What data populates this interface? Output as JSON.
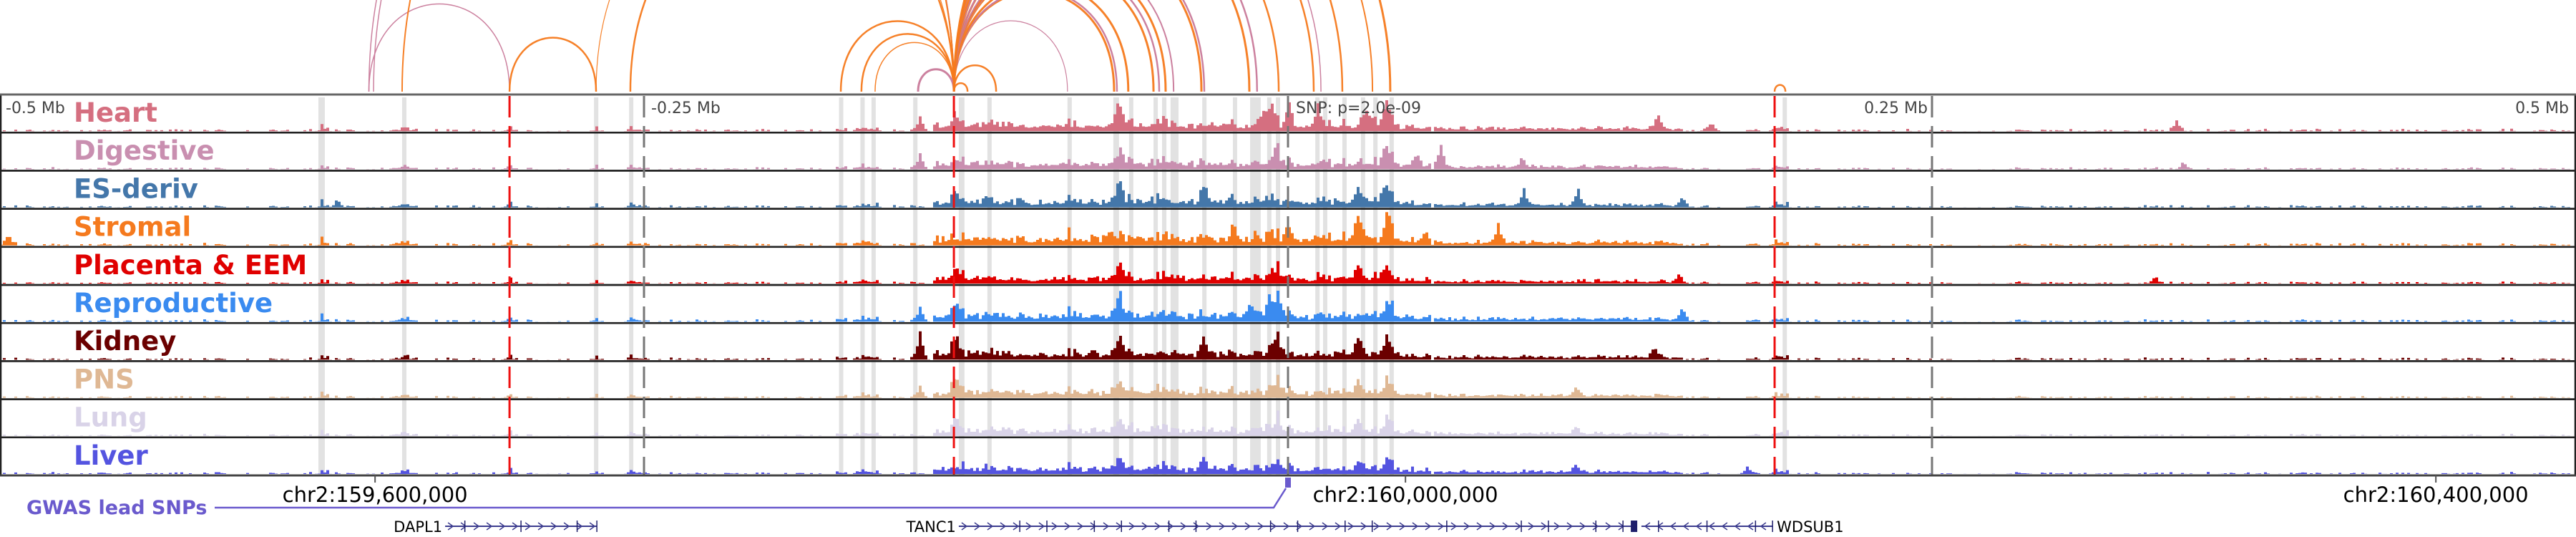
{
  "viewer": {
    "region_span_mb": [
      -0.5,
      0.5
    ],
    "snp_label": "SNP: p=2.0e-09",
    "top_axis": [
      {
        "offset_mb": -0.5,
        "label": "-0.5 Mb"
      },
      {
        "offset_mb": -0.25,
        "label": "-0.25 Mb"
      },
      {
        "offset_mb": 0.25,
        "label": "0.25 Mb"
      },
      {
        "offset_mb": 0.5,
        "label": "0.5 Mb"
      }
    ],
    "bottom_axis": [
      {
        "offset_mb": -0.3544,
        "label": "chr2:159,600,000"
      },
      {
        "offset_mb": 0.0456,
        "label": "chr2:160,000,000"
      },
      {
        "offset_mb": 0.4456,
        "label": "chr2:160,400,000"
      }
    ],
    "red_markers_mb": [
      -0.3022,
      -0.1297,
      0.1889
    ],
    "highlight_bands_mb": [
      {
        "start": -0.3764,
        "end": -0.3739
      },
      {
        "start": -0.3439,
        "end": -0.3433
      },
      {
        "start": -0.2694,
        "end": -0.2686
      },
      {
        "start": -0.2558,
        "end": -0.2553
      },
      {
        "start": -0.1743,
        "end": -0.1737
      },
      {
        "start": -0.166,
        "end": -0.1654
      },
      {
        "start": -0.1617,
        "end": -0.1611
      },
      {
        "start": -0.1455,
        "end": -0.1445
      },
      {
        "start": -0.1278,
        "end": -0.1256
      },
      {
        "start": -0.1167,
        "end": -0.1161
      },
      {
        "start": -0.0856,
        "end": -0.085
      },
      {
        "start": -0.0678,
        "end": -0.0656
      },
      {
        "start": -0.0617,
        "end": -0.0611
      },
      {
        "start": -0.0522,
        "end": -0.0506
      },
      {
        "start": -0.0489,
        "end": -0.0472
      },
      {
        "start": -0.0456,
        "end": -0.0425
      },
      {
        "start": -0.0333,
        "end": -0.0317
      },
      {
        "start": -0.0214,
        "end": -0.0208
      },
      {
        "start": -0.0147,
        "end": -0.0106
      },
      {
        "start": -0.0081,
        "end": -0.0072
      },
      {
        "start": -0.0047,
        "end": -0.0039
      },
      {
        "start": 0.0106,
        "end": 0.0114
      },
      {
        "start": 0.0136,
        "end": 0.0142
      },
      {
        "start": 0.0211,
        "end": 0.0217
      },
      {
        "start": 0.0283,
        "end": 0.0292
      },
      {
        "start": 0.0331,
        "end": 0.0339
      },
      {
        "start": 0.0394,
        "end": 0.0406
      },
      {
        "start": 0.192,
        "end": 0.1928
      }
    ],
    "tracks": [
      {
        "name": "Heart",
        "color": "#d56f80",
        "gain": 1.0
      },
      {
        "name": "Digestive",
        "color": "#c98fb0",
        "gain": 0.9
      },
      {
        "name": "ES-deriv",
        "color": "#4477aa",
        "gain": 0.95
      },
      {
        "name": "Stromal",
        "color": "#f57a1e",
        "gain": 1.1
      },
      {
        "name": "Placenta & EEM",
        "color": "#e00000",
        "gain": 0.85
      },
      {
        "name": "Reproductive",
        "color": "#3a8bf0",
        "gain": 1.0
      },
      {
        "name": "Kidney",
        "color": "#6b0000",
        "gain": 1.0
      },
      {
        "name": "PNS",
        "color": "#dfb894",
        "gain": 0.9
      },
      {
        "name": "Lung",
        "color": "#d9d3e8",
        "gain": 0.9
      },
      {
        "name": "Liver",
        "color": "#5454e0",
        "gain": 0.85
      }
    ],
    "arcs": [
      {
        "from": -0.3568,
        "to": -0.3022,
        "color": "#c97a9a",
        "weight": 1.5
      },
      {
        "from": -0.3022,
        "to": -0.2686,
        "color": "#f57a1e",
        "weight": 2.5
      },
      {
        "from": -0.3568,
        "to": -0.1297,
        "color": "#c97a9a",
        "weight": 1.5
      },
      {
        "from": -0.355,
        "to": -0.1297,
        "color": "#c97a9a",
        "weight": 1.5
      },
      {
        "from": -0.3439,
        "to": -0.1297,
        "color": "#f57a1e",
        "weight": 2
      },
      {
        "from": -0.2686,
        "to": -0.1297,
        "color": "#f57a1e",
        "weight": 1.2
      },
      {
        "from": -0.2553,
        "to": -0.1297,
        "color": "#f57a1e",
        "weight": 2.5
      },
      {
        "from": -0.1736,
        "to": -0.1297,
        "color": "#f57a1e",
        "weight": 2.5
      },
      {
        "from": -0.1656,
        "to": -0.1297,
        "color": "#f57a1e",
        "weight": 2.5
      },
      {
        "from": -0.1603,
        "to": -0.1297,
        "color": "#f57a1e",
        "weight": 1.5
      },
      {
        "from": -0.1436,
        "to": -0.1297,
        "color": "#c97a9a",
        "weight": 3
      },
      {
        "from": -0.1297,
        "to": -0.1244,
        "color": "#f57a1e",
        "weight": 2.5
      },
      {
        "from": -0.1297,
        "to": -0.1133,
        "color": "#f57a1e",
        "weight": 2.5
      },
      {
        "from": -0.1297,
        "to": -0.0856,
        "color": "#c97a9a",
        "weight": 1.2
      },
      {
        "from": -0.1297,
        "to": -0.0675,
        "color": "#f57a1e",
        "weight": 3
      },
      {
        "from": -0.1297,
        "to": -0.0664,
        "color": "#c97a9a",
        "weight": 2.5
      },
      {
        "from": -0.1297,
        "to": -0.062,
        "color": "#f57a1e",
        "weight": 3
      },
      {
        "from": -0.1297,
        "to": -0.0522,
        "color": "#f57a1e",
        "weight": 3
      },
      {
        "from": -0.1297,
        "to": -0.05,
        "color": "#c97a9a",
        "weight": 2.5
      },
      {
        "from": -0.1297,
        "to": -0.0475,
        "color": "#f57a1e",
        "weight": 3
      },
      {
        "from": -0.1297,
        "to": -0.0444,
        "color": "#c97a9a",
        "weight": 2
      },
      {
        "from": -0.1297,
        "to": -0.0336,
        "color": "#f57a1e",
        "weight": 3
      },
      {
        "from": -0.1297,
        "to": -0.0325,
        "color": "#c97a9a",
        "weight": 2.5
      },
      {
        "from": -0.1297,
        "to": -0.015,
        "color": "#f57a1e",
        "weight": 3
      },
      {
        "from": -0.1297,
        "to": -0.012,
        "color": "#c97a9a",
        "weight": 2.5
      },
      {
        "from": -0.1297,
        "to": -0.0036,
        "color": "#f57a1e",
        "weight": 2.5
      },
      {
        "from": -0.1297,
        "to": 0.01,
        "color": "#f57a1e",
        "weight": 2.5
      },
      {
        "from": -0.1297,
        "to": 0.0128,
        "color": "#c97a9a",
        "weight": 1.5
      },
      {
        "from": -0.1297,
        "to": 0.0211,
        "color": "#f57a1e",
        "weight": 2.5
      },
      {
        "from": -0.1297,
        "to": 0.0328,
        "color": "#f57a1e",
        "weight": 2
      },
      {
        "from": -0.1297,
        "to": 0.0397,
        "color": "#f57a1e",
        "weight": 3
      },
      {
        "from": 0.1889,
        "to": 0.1931,
        "color": "#f57a1e",
        "weight": 2.5
      }
    ],
    "gwas": {
      "label": "GWAS lead SNPs",
      "color": "#6a5acd",
      "snp_offset_mb": 0.0
    },
    "genes": [
      {
        "name": "DAPL1",
        "start": -0.3272,
        "end": -0.2683,
        "strand": "+",
        "label_side": "left"
      },
      {
        "name": "TANC1",
        "start": -0.1278,
        "end": 0.1353,
        "strand": "+",
        "label_side": "left"
      },
      {
        "name": "WDSUB1",
        "start": 0.1372,
        "end": 0.1881,
        "strand": "-",
        "label_side": "right"
      }
    ]
  }
}
